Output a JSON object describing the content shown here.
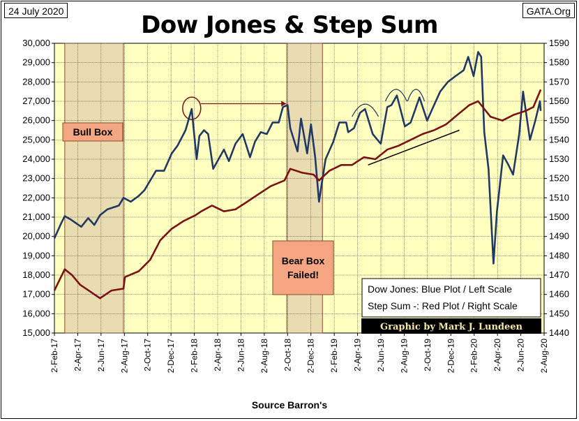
{
  "header": {
    "date": "24 July 2020",
    "brand": "GATA.Org"
  },
  "chart_data": {
    "type": "line",
    "title": "Dow Jones & Step Sum",
    "xlabel": "Source Barron's",
    "x_ticks": [
      "2-Feb-17",
      "2-Apr-17",
      "2-Jun-17",
      "2-Aug-17",
      "2-Oct-17",
      "2-Dec-17",
      "2-Feb-18",
      "2-Apr-18",
      "2-Jun-18",
      "2-Aug-18",
      "2-Oct-18",
      "2-Dec-18",
      "2-Feb-19",
      "2-Apr-19",
      "2-Jun-19",
      "2-Aug-19",
      "2-Oct-19",
      "2-Dec-19",
      "2-Feb-20",
      "2-Apr-20",
      "2-Jun-20",
      "2-Aug-20"
    ],
    "x_range": [
      "2017-02-02",
      "2020-08-02"
    ],
    "y_left": {
      "range": [
        15000,
        30000
      ],
      "ticks": [
        "15,000",
        "16,000",
        "17,000",
        "18,000",
        "19,000",
        "20,000",
        "21,000",
        "22,000",
        "23,000",
        "24,000",
        "25,000",
        "26,000",
        "27,000",
        "28,000",
        "29,000",
        "30,000"
      ]
    },
    "y_right": {
      "range": [
        1440,
        1590
      ],
      "ticks": [
        "1440",
        "1450",
        "1460",
        "1470",
        "1480",
        "1490",
        "1500",
        "1510",
        "1520",
        "1530",
        "1540",
        "1550",
        "1560",
        "1570",
        "1580",
        "1590"
      ]
    },
    "grid": true,
    "plot_background": "#ffffc0",
    "shaded_regions": [
      {
        "start": "2017-03-01",
        "end": "2017-08-01",
        "color": "#e8dcb0"
      },
      {
        "start": "2018-10-01",
        "end": "2019-01-02",
        "color": "#e8dcb0"
      }
    ],
    "series": [
      {
        "name": "Dow Jones",
        "axis": "left",
        "color": "#1f3864",
        "points": [
          [
            "2017-02-02",
            19900
          ],
          [
            "2017-02-20",
            20700
          ],
          [
            "2017-03-01",
            21050
          ],
          [
            "2017-03-15",
            20900
          ],
          [
            "2017-04-13",
            20500
          ],
          [
            "2017-05-01",
            20950
          ],
          [
            "2017-05-17",
            20600
          ],
          [
            "2017-06-01",
            21100
          ],
          [
            "2017-06-20",
            21400
          ],
          [
            "2017-07-20",
            21600
          ],
          [
            "2017-08-01",
            22000
          ],
          [
            "2017-08-20",
            21800
          ],
          [
            "2017-09-10",
            22100
          ],
          [
            "2017-09-25",
            22400
          ],
          [
            "2017-10-10",
            22900
          ],
          [
            "2017-10-25",
            23400
          ],
          [
            "2017-11-15",
            23400
          ],
          [
            "2017-12-05",
            24300
          ],
          [
            "2017-12-20",
            24700
          ],
          [
            "2018-01-10",
            25500
          ],
          [
            "2018-01-26",
            26600
          ],
          [
            "2018-02-08",
            24000
          ],
          [
            "2018-02-15",
            25200
          ],
          [
            "2018-02-27",
            25500
          ],
          [
            "2018-03-10",
            25300
          ],
          [
            "2018-03-23",
            23500
          ],
          [
            "2018-04-06",
            24000
          ],
          [
            "2018-04-20",
            24500
          ],
          [
            "2018-05-03",
            23900
          ],
          [
            "2018-05-20",
            24800
          ],
          [
            "2018-06-08",
            25300
          ],
          [
            "2018-06-27",
            24100
          ],
          [
            "2018-07-10",
            24900
          ],
          [
            "2018-07-25",
            25400
          ],
          [
            "2018-08-10",
            25300
          ],
          [
            "2018-08-25",
            25900
          ],
          [
            "2018-09-10",
            25900
          ],
          [
            "2018-09-21",
            26700
          ],
          [
            "2018-10-03",
            26800
          ],
          [
            "2018-10-10",
            25600
          ],
          [
            "2018-10-29",
            24400
          ],
          [
            "2018-11-07",
            26100
          ],
          [
            "2018-11-23",
            24300
          ],
          [
            "2018-12-03",
            25800
          ],
          [
            "2018-12-14",
            24100
          ],
          [
            "2018-12-24",
            21800
          ],
          [
            "2019-01-10",
            24000
          ],
          [
            "2019-01-30",
            24900
          ],
          [
            "2019-02-15",
            25900
          ],
          [
            "2019-03-05",
            25900
          ],
          [
            "2019-03-10",
            25400
          ],
          [
            "2019-03-25",
            25600
          ],
          [
            "2019-04-10",
            26400
          ],
          [
            "2019-04-23",
            26600
          ],
          [
            "2019-05-13",
            25300
          ],
          [
            "2019-06-03",
            24800
          ],
          [
            "2019-06-20",
            26700
          ],
          [
            "2019-07-01",
            26800
          ],
          [
            "2019-07-15",
            27300
          ],
          [
            "2019-08-05",
            25700
          ],
          [
            "2019-08-20",
            25900
          ],
          [
            "2019-09-12",
            27200
          ],
          [
            "2019-10-02",
            26000
          ],
          [
            "2019-10-20",
            26800
          ],
          [
            "2019-11-05",
            27500
          ],
          [
            "2019-11-25",
            28000
          ],
          [
            "2019-12-15",
            28300
          ],
          [
            "2020-01-05",
            28600
          ],
          [
            "2020-01-17",
            29300
          ],
          [
            "2020-01-31",
            28300
          ],
          [
            "2020-02-12",
            29550
          ],
          [
            "2020-02-20",
            29300
          ],
          [
            "2020-02-28",
            25400
          ],
          [
            "2020-03-10",
            23500
          ],
          [
            "2020-03-23",
            18600
          ],
          [
            "2020-04-01",
            21300
          ],
          [
            "2020-04-17",
            24200
          ],
          [
            "2020-05-01",
            23700
          ],
          [
            "2020-05-13",
            23200
          ],
          [
            "2020-05-29",
            25300
          ],
          [
            "2020-06-08",
            27500
          ],
          [
            "2020-06-26",
            25000
          ],
          [
            "2020-07-10",
            26000
          ],
          [
            "2020-07-22",
            27000
          ],
          [
            "2020-07-24",
            26500
          ]
        ]
      },
      {
        "name": "Step Sum",
        "axis": "right",
        "color": "#7b1113",
        "points": [
          [
            "2017-02-02",
            1462
          ],
          [
            "2017-03-01",
            1473
          ],
          [
            "2017-03-20",
            1470
          ],
          [
            "2017-04-10",
            1465
          ],
          [
            "2017-05-10",
            1461
          ],
          [
            "2017-06-01",
            1458
          ],
          [
            "2017-07-01",
            1462
          ],
          [
            "2017-08-01",
            1463
          ],
          [
            "2017-08-05",
            1469
          ],
          [
            "2017-09-10",
            1472
          ],
          [
            "2017-10-10",
            1478
          ],
          [
            "2017-11-05",
            1488
          ],
          [
            "2017-12-05",
            1494
          ],
          [
            "2018-01-05",
            1498
          ],
          [
            "2018-02-05",
            1501
          ],
          [
            "2018-02-20",
            1503
          ],
          [
            "2018-03-20",
            1506
          ],
          [
            "2018-04-20",
            1503
          ],
          [
            "2018-05-20",
            1504
          ],
          [
            "2018-06-20",
            1508
          ],
          [
            "2018-07-20",
            1512
          ],
          [
            "2018-08-20",
            1516
          ],
          [
            "2018-09-25",
            1519
          ],
          [
            "2018-10-10",
            1525
          ],
          [
            "2018-11-10",
            1523
          ],
          [
            "2018-12-10",
            1522
          ],
          [
            "2018-12-24",
            1519
          ],
          [
            "2019-01-20",
            1524
          ],
          [
            "2019-02-20",
            1527
          ],
          [
            "2019-03-20",
            1527
          ],
          [
            "2019-04-20",
            1531
          ],
          [
            "2019-05-20",
            1530
          ],
          [
            "2019-06-20",
            1535
          ],
          [
            "2019-07-20",
            1537
          ],
          [
            "2019-08-20",
            1540
          ],
          [
            "2019-09-20",
            1543
          ],
          [
            "2019-10-20",
            1545
          ],
          [
            "2019-11-20",
            1548
          ],
          [
            "2019-12-20",
            1553
          ],
          [
            "2020-01-20",
            1558
          ],
          [
            "2020-02-12",
            1560
          ],
          [
            "2020-02-28",
            1556
          ],
          [
            "2020-03-15",
            1552
          ],
          [
            "2020-04-15",
            1550
          ],
          [
            "2020-05-15",
            1553
          ],
          [
            "2020-06-15",
            1555
          ],
          [
            "2020-07-05",
            1557
          ],
          [
            "2020-07-24",
            1566
          ]
        ]
      }
    ],
    "annotations": {
      "bull_box": "Bull Box",
      "bear_box_line1": "Bear Box",
      "bear_box_line2": "Failed!"
    },
    "legend": {
      "placement": "bottom-right",
      "line1": "Dow Jones: Blue Plot / Left Scale",
      "line2": "Step Sum -: Red Plot / Right Scale"
    },
    "credit": "Graphic by Mark J. Lundeen"
  }
}
